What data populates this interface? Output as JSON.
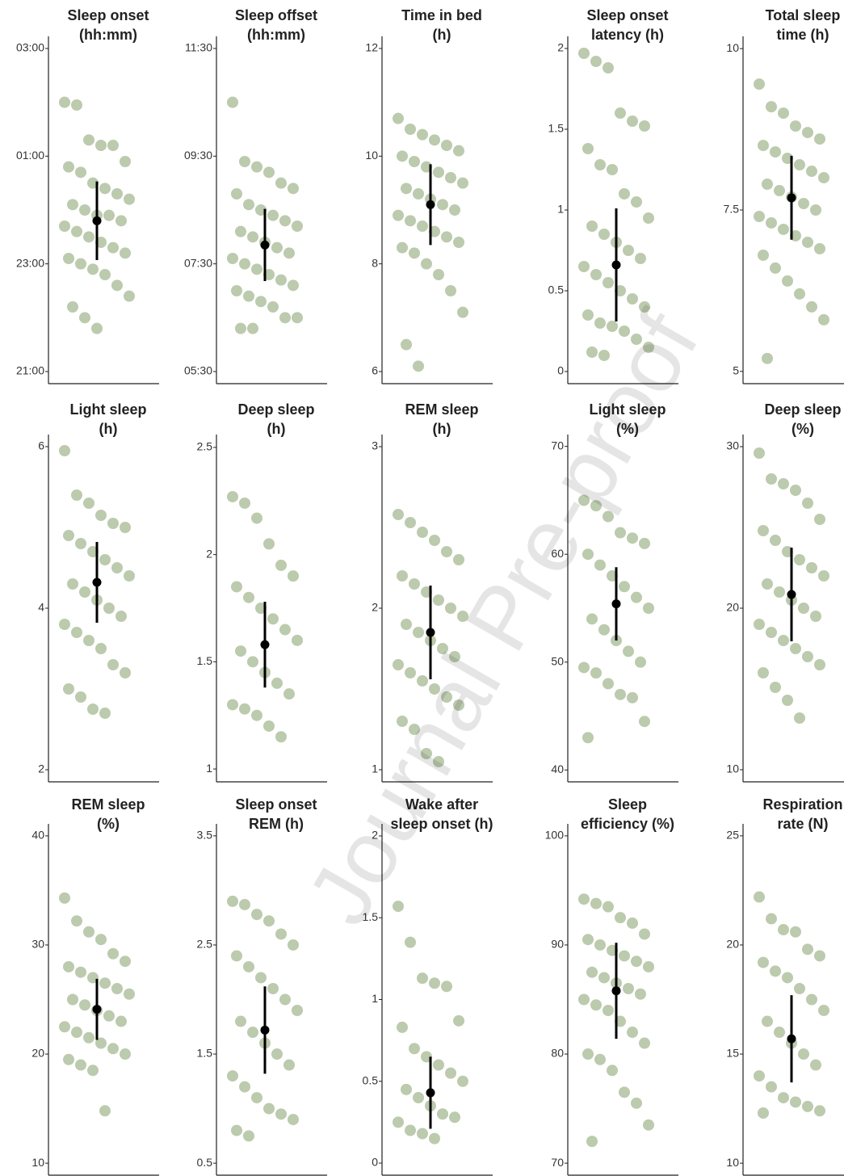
{
  "watermark": "Journal Pre-proof",
  "chart_data": [
    {
      "type": "strip",
      "title": [
        "Sleep onset",
        "(hh:mm)"
      ],
      "color": "#6b8a4a",
      "ylim": [
        20.775,
        27.225
      ],
      "yticks": [
        {
          "value": 21,
          "label": "21:00"
        },
        {
          "value": 23,
          "label": "23:00"
        },
        {
          "value": 25,
          "label": "01:00"
        },
        {
          "value": 27,
          "label": "03:00"
        }
      ],
      "values": [
        26.0,
        25.95,
        25.3,
        25.2,
        25.2,
        24.9,
        24.8,
        24.7,
        24.5,
        24.4,
        24.3,
        24.2,
        24.1,
        24.0,
        23.9,
        23.9,
        23.8,
        23.7,
        23.6,
        23.5,
        23.4,
        23.3,
        23.2,
        23.1,
        23.0,
        22.9,
        22.8,
        22.6,
        22.4,
        22.2,
        22.0,
        21.8
      ],
      "mean": 23.8,
      "error": 0.73
    },
    {
      "type": "strip",
      "title": [
        "Sleep offset",
        "(hh:mm)"
      ],
      "color": "#6b8a4a",
      "ylim": [
        5.275,
        11.725
      ],
      "yticks": [
        {
          "value": 5.5,
          "label": "05:30"
        },
        {
          "value": 7.5,
          "label": "07:30"
        },
        {
          "value": 9.5,
          "label": "09:30"
        },
        {
          "value": 11.5,
          "label": "11:30"
        }
      ],
      "values": [
        10.5,
        9.4,
        9.3,
        9.2,
        9.0,
        8.9,
        8.8,
        8.6,
        8.5,
        8.4,
        8.3,
        8.2,
        8.1,
        8.0,
        7.9,
        7.8,
        7.7,
        7.6,
        7.5,
        7.4,
        7.3,
        7.2,
        7.1,
        7.0,
        6.9,
        6.8,
        6.7,
        6.5,
        6.5,
        6.3,
        6.3
      ],
      "mean": 7.85,
      "error": 0.67
    },
    {
      "type": "strip",
      "title": [
        "Time in bed",
        "(h)"
      ],
      "color": "#6b8a4a",
      "ylim": [
        5.775,
        12.225
      ],
      "yticks": [
        6,
        8,
        10,
        12
      ],
      "values": [
        10.7,
        10.5,
        10.4,
        10.3,
        10.2,
        10.1,
        10.0,
        9.9,
        9.8,
        9.7,
        9.6,
        9.5,
        9.4,
        9.3,
        9.2,
        9.1,
        9.0,
        8.9,
        8.8,
        8.7,
        8.6,
        8.5,
        8.4,
        8.3,
        8.2,
        8.0,
        7.8,
        7.5,
        7.1,
        6.5,
        6.1
      ],
      "mean": 9.1,
      "error": 0.75
    },
    {
      "type": "strip",
      "title": [
        "Sleep onset",
        "latency (h)"
      ],
      "color": "#6b8a4a",
      "ylim": [
        -0.075,
        2.075
      ],
      "yticks": [
        0,
        0.5,
        1,
        1.5,
        2
      ],
      "values": [
        1.97,
        1.92,
        1.88,
        1.6,
        1.55,
        1.52,
        1.38,
        1.28,
        1.25,
        1.1,
        1.05,
        0.95,
        0.9,
        0.85,
        0.8,
        0.75,
        0.7,
        0.65,
        0.6,
        0.55,
        0.5,
        0.45,
        0.4,
        0.35,
        0.3,
        0.28,
        0.25,
        0.2,
        0.15,
        0.12,
        0.1
      ],
      "mean": 0.66,
      "error": 0.35
    },
    {
      "type": "strip",
      "title": [
        "Total sleep",
        "time (h)"
      ],
      "color": "#6b8a4a",
      "ylim": [
        4.81,
        10.19
      ],
      "yticks": [
        5,
        7.5,
        10
      ],
      "values": [
        9.45,
        9.1,
        9.0,
        8.8,
        8.7,
        8.6,
        8.5,
        8.4,
        8.3,
        8.2,
        8.1,
        8.0,
        7.9,
        7.8,
        7.7,
        7.6,
        7.5,
        7.4,
        7.3,
        7.2,
        7.1,
        7.0,
        6.9,
        6.8,
        6.6,
        6.4,
        6.2,
        6.0,
        5.8,
        5.2
      ],
      "mean": 7.69,
      "error": 0.65
    },
    {
      "type": "strip",
      "title": [
        "Light sleep",
        "(h)"
      ],
      "color": "#6b8a4a",
      "ylim": [
        1.85,
        6.15
      ],
      "yticks": [
        2,
        4,
        6
      ],
      "values": [
        5.95,
        5.4,
        5.3,
        5.15,
        5.05,
        5.0,
        4.9,
        4.8,
        4.7,
        4.6,
        4.5,
        4.4,
        4.3,
        4.2,
        4.1,
        4.0,
        3.9,
        3.8,
        3.7,
        3.6,
        3.5,
        3.3,
        3.2,
        3.0,
        2.9,
        2.75,
        2.7
      ],
      "mean": 4.32,
      "error": 0.5
    },
    {
      "type": "strip",
      "title": [
        "Deep sleep",
        "(h)"
      ],
      "color": "#6b8a4a",
      "ylim": [
        0.94,
        2.56
      ],
      "yticks": [
        1,
        1.5,
        2,
        2.5
      ],
      "values": [
        2.27,
        2.24,
        2.17,
        2.05,
        1.95,
        1.9,
        1.85,
        1.8,
        1.75,
        1.7,
        1.65,
        1.6,
        1.55,
        1.5,
        1.45,
        1.4,
        1.35,
        1.3,
        1.28,
        1.25,
        1.2,
        1.15
      ],
      "mean": 1.58,
      "error": 0.2
    },
    {
      "type": "strip",
      "title": [
        "REM sleep",
        "(h)"
      ],
      "color": "#6b8a4a",
      "ylim": [
        0.925,
        3.075
      ],
      "yticks": [
        1,
        2,
        3
      ],
      "values": [
        2.58,
        2.53,
        2.47,
        2.42,
        2.35,
        2.3,
        2.2,
        2.15,
        2.1,
        2.05,
        2.0,
        1.95,
        1.9,
        1.85,
        1.8,
        1.75,
        1.7,
        1.65,
        1.6,
        1.55,
        1.5,
        1.45,
        1.4,
        1.3,
        1.25,
        1.1,
        1.05
      ],
      "mean": 1.85,
      "error": 0.29
    },
    {
      "type": "strip",
      "title": [
        "Light sleep",
        "(%)"
      ],
      "color": "#6b8a4a",
      "ylim": [
        38.9,
        71.1
      ],
      "yticks": [
        40,
        50,
        60,
        70
      ],
      "values": [
        65,
        64.5,
        63.5,
        62,
        61.5,
        61,
        60,
        59,
        58,
        57,
        56,
        55,
        54,
        53,
        52,
        51,
        50,
        49.5,
        49,
        48,
        47,
        46.7,
        44.5,
        43
      ],
      "mean": 55.4,
      "error": 3.4
    },
    {
      "type": "strip",
      "title": [
        "Deep sleep",
        "(%)"
      ],
      "color": "#6b8a4a",
      "ylim": [
        9.25,
        30.75
      ],
      "yticks": [
        10,
        20,
        30
      ],
      "values": [
        29.6,
        28.0,
        27.7,
        27.3,
        26.5,
        25.5,
        24.8,
        24.2,
        23.5,
        23,
        22.5,
        22,
        21.5,
        21,
        20.5,
        20,
        19.5,
        19,
        18.5,
        18,
        17.5,
        17,
        16.5,
        16,
        15.1,
        14.3,
        13.2
      ],
      "mean": 20.85,
      "error": 2.9
    },
    {
      "type": "strip",
      "title": [
        "REM sleep",
        "(%)"
      ],
      "color": "#6b8a4a",
      "ylim": [
        8.9,
        41.1
      ],
      "yticks": [
        10,
        20,
        30,
        40
      ],
      "values": [
        34.3,
        32.2,
        31.2,
        30.5,
        29.2,
        28.5,
        28,
        27.5,
        27,
        26.5,
        26,
        25.5,
        25,
        24.5,
        24,
        23.5,
        23,
        22.5,
        22,
        21.5,
        21,
        20.5,
        20,
        19.5,
        19,
        18.5,
        14.8
      ],
      "mean": 24.1,
      "error": 2.8
    },
    {
      "type": "strip",
      "title": [
        "Sleep onset",
        "REM (h)"
      ],
      "color": "#6b8a4a",
      "ylim": [
        0.39,
        3.61
      ],
      "yticks": [
        0.5,
        1.5,
        2.5,
        3.5
      ],
      "values": [
        2.9,
        2.87,
        2.78,
        2.72,
        2.6,
        2.5,
        2.4,
        2.3,
        2.2,
        2.1,
        2.0,
        1.9,
        1.8,
        1.7,
        1.6,
        1.5,
        1.4,
        1.3,
        1.2,
        1.1,
        1.0,
        0.95,
        0.9,
        0.8,
        0.75
      ],
      "mean": 1.72,
      "error": 0.4
    },
    {
      "type": "strip",
      "title": [
        "Wake after",
        "sleep onset (h)"
      ],
      "color": "#6b8a4a",
      "ylim": [
        -0.074,
        2.074
      ],
      "yticks": [
        0,
        0.5,
        1,
        1.5,
        2
      ],
      "values": [
        1.57,
        1.35,
        1.13,
        1.1,
        1.08,
        0.87,
        0.83,
        0.7,
        0.65,
        0.6,
        0.55,
        0.5,
        0.45,
        0.4,
        0.35,
        0.3,
        0.28,
        0.25,
        0.2,
        0.18,
        0.15
      ],
      "mean": 0.43,
      "error": 0.22
    },
    {
      "type": "strip",
      "title": [
        "Sleep",
        "efficiency (%)"
      ],
      "color": "#6b8a4a",
      "ylim": [
        68.9,
        101.1
      ],
      "yticks": [
        70,
        80,
        90,
        100
      ],
      "values": [
        94.2,
        93.8,
        93.5,
        92.5,
        92,
        91,
        90.5,
        90,
        89.5,
        89,
        88.5,
        88,
        87.5,
        87,
        86.5,
        86,
        85.5,
        85,
        84.5,
        84,
        83,
        82,
        81,
        80,
        79.5,
        78.5,
        76.5,
        75.5,
        73.5,
        72
      ],
      "mean": 85.8,
      "error": 4.4
    },
    {
      "type": "strip",
      "title": [
        "Respiration",
        "rate (N)"
      ],
      "color": "#6b8a4a",
      "ylim": [
        9.45,
        25.55
      ],
      "yticks": [
        10,
        15,
        20,
        25
      ],
      "values": [
        22.2,
        21.2,
        20.7,
        20.6,
        19.8,
        19.5,
        19.2,
        18.8,
        18.5,
        18,
        17.5,
        17,
        16.5,
        16,
        15.5,
        15,
        14.5,
        14,
        13.5,
        13,
        12.8,
        12.6,
        12.4,
        12.3
      ],
      "mean": 15.7,
      "error": 2.0
    }
  ]
}
